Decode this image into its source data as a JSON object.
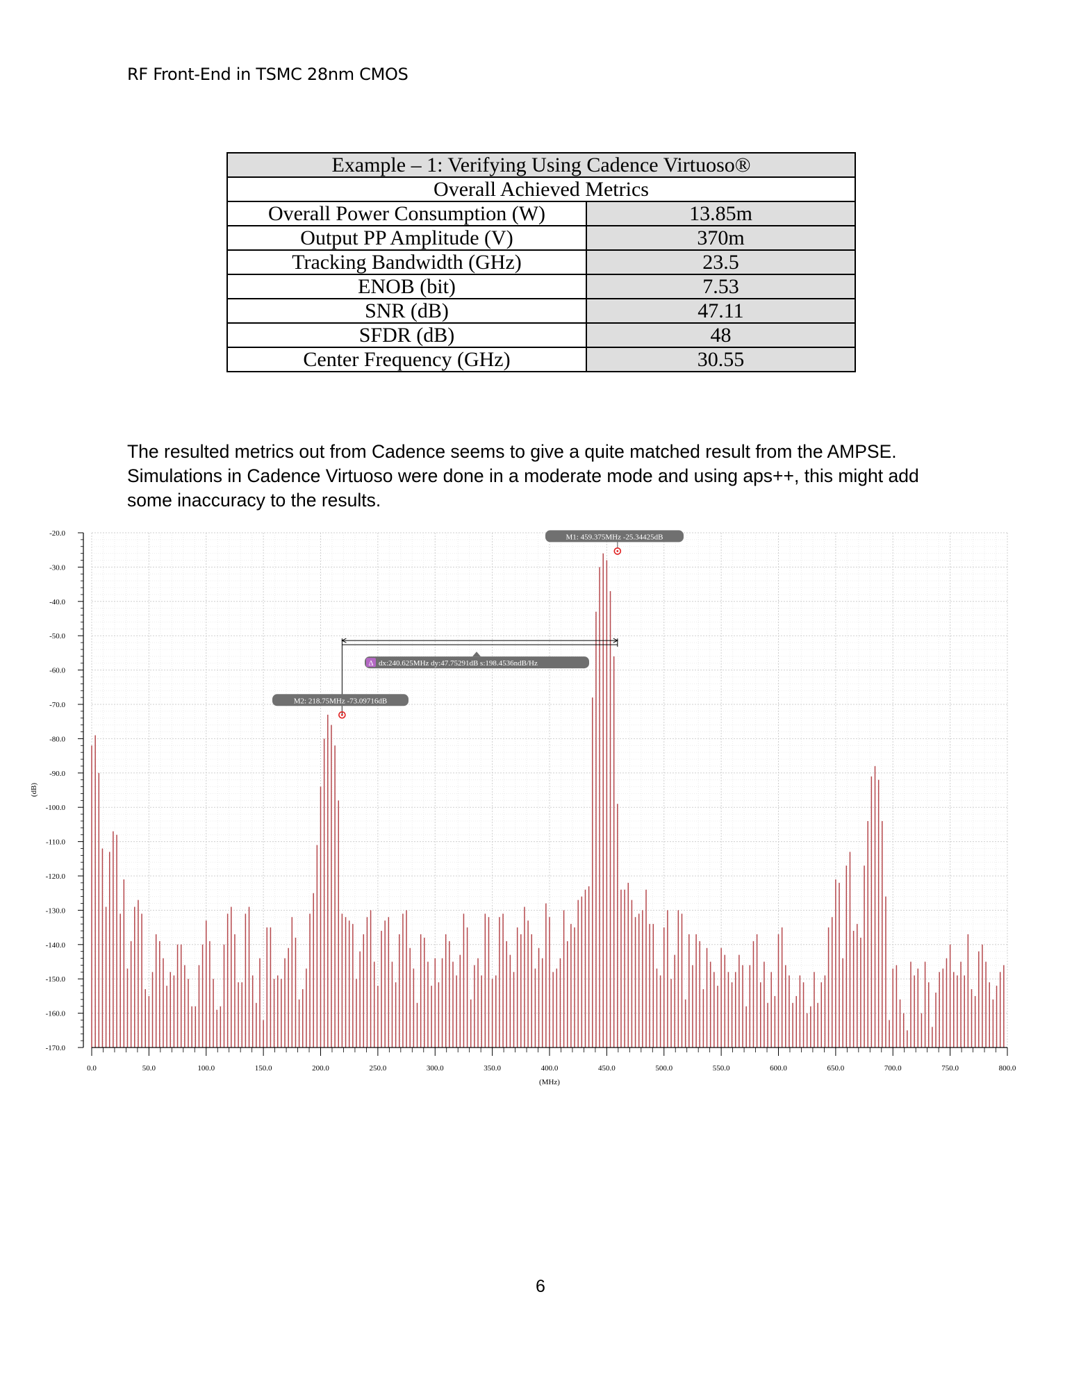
{
  "header": {
    "title": "RF Front-End in TSMC 28nm CMOS"
  },
  "table": {
    "title": "Example – 1: Verifying Using Cadence Virtuoso®",
    "subtitle": "Overall Achieved Metrics",
    "rows": [
      {
        "label": "Overall Power Consumption (W)",
        "value": "13.85m"
      },
      {
        "label": "Output PP Amplitude (V)",
        "value": "370m"
      },
      {
        "label": "Tracking Bandwidth (GHz)",
        "value": "23.5"
      },
      {
        "label": "ENOB (bit)",
        "value": "7.53"
      },
      {
        "label": "SNR (dB)",
        "value": "47.11"
      },
      {
        "label": "SFDR (dB)",
        "value": "48"
      },
      {
        "label": "Center Frequency (GHz)",
        "value": "30.55"
      }
    ]
  },
  "paragraph": {
    "lines": [
      "The resulted metrics out from Cadence seems to give a quite matched result from the AMPSE.",
      "Simulations in Cadence Virtuoso were done in a moderate mode and using aps++, this might add",
      "some inaccuracy to the results."
    ]
  },
  "page_number": "6",
  "chart_data": {
    "type": "bar",
    "xlabel": "(MHz)",
    "ylabel": "(dB)",
    "xlim": [
      0,
      800
    ],
    "ylim": [
      -170,
      -20
    ],
    "grid": true,
    "bar_color": "#b5474b",
    "x_ticks": [
      "0.0",
      "50.0",
      "100.0",
      "150.0",
      "200.0",
      "250.0",
      "300.0",
      "350.0",
      "400.0",
      "450.0",
      "500.0",
      "550.0",
      "600.0",
      "650.0",
      "700.0",
      "750.0",
      "800.0"
    ],
    "y_ticks": [
      "-20.0",
      "-30.0",
      "-40.0",
      "-50.0",
      "-60.0",
      "-70.0",
      "-80.0",
      "-90.0",
      "-100.0",
      "-110.0",
      "-120.0",
      "-130.0",
      "-140.0",
      "-150.0",
      "-160.0",
      "-170.0"
    ],
    "x_step": 3.125,
    "values": [
      -82,
      -79,
      -90,
      -112,
      -129,
      -113,
      -107,
      -108,
      -131,
      -121,
      -147,
      -139,
      -129,
      -127,
      -131,
      -153,
      -155,
      -148,
      -137,
      -139,
      -144,
      -152,
      -148,
      -149,
      -140,
      -140,
      -146,
      -150,
      -158,
      -158,
      -146,
      -140,
      -133,
      -139,
      -150,
      -159,
      -158,
      -140,
      -131,
      -129,
      -137,
      -151,
      -151,
      -131,
      -129,
      -149,
      -157,
      -144,
      -162,
      -135,
      -135,
      -150,
      -149,
      -150,
      -144,
      -141,
      -132,
      -138,
      -156,
      -153,
      -147,
      -131,
      -125,
      -111,
      -94,
      -80,
      -73,
      -76,
      -82,
      -98,
      -131,
      -132,
      -133,
      -134,
      -150,
      -142,
      -137,
      -132,
      -130,
      -145,
      -152,
      -136,
      -133,
      -132,
      -145,
      -151,
      -137,
      -131,
      -130,
      -141,
      -147,
      -157,
      -137,
      -138,
      -145,
      -152,
      -144,
      -151,
      -144,
      -137,
      -139,
      -145,
      -149,
      -143,
      -131,
      -135,
      -156,
      -146,
      -144,
      -149,
      -131,
      -132,
      -150,
      -149,
      -132,
      -131,
      -139,
      -143,
      -148,
      -135,
      -137,
      -129,
      -133,
      -137,
      -147,
      -141,
      -144,
      -128,
      -132,
      -148,
      -147,
      -144,
      -130,
      -139,
      -134,
      -135,
      -127,
      -126,
      -124,
      -123,
      -68,
      -43,
      -30,
      -26,
      -28,
      -37,
      -56,
      -99,
      -124,
      -124,
      -122,
      -127,
      -132,
      -131,
      -130,
      -124,
      -134,
      -134,
      -147,
      -149,
      -135,
      -130,
      -150,
      -143,
      -130,
      -131,
      -156,
      -137,
      -146,
      -137,
      -139,
      -153,
      -141,
      -145,
      -148,
      -152,
      -141,
      -143,
      -148,
      -151,
      -148,
      -143,
      -146,
      -158,
      -146,
      -139,
      -137,
      -151,
      -145,
      -157,
      -148,
      -155,
      -137,
      -135,
      -146,
      -149,
      -157,
      -155,
      -149,
      -151,
      -160,
      -158,
      -148,
      -157,
      -151,
      -149,
      -135,
      -132,
      -121,
      -122,
      -144,
      -117,
      -113,
      -136,
      -134,
      -138,
      -117,
      -104,
      -91,
      -88,
      -92,
      -104,
      -126,
      -162,
      -147,
      -146,
      -156,
      -160,
      -165,
      -145,
      -149,
      -147,
      -160,
      -145,
      -151,
      -164,
      -154,
      -148,
      -147,
      -144,
      -140,
      -148,
      -149,
      -145,
      -149,
      -137,
      -153,
      -155,
      -142,
      -140,
      -145,
      -151,
      -156,
      -152,
      -148,
      -146
    ],
    "markers": [
      {
        "label": "M1: 459.375MHz -25.34425dB",
        "x": 459.375,
        "y": -25.34425
      },
      {
        "label": "M2: 218.75MHz -73.09716dB",
        "x": 218.75,
        "y": -73.09716
      }
    ],
    "delta": {
      "icon": "Δ",
      "label": "dx:240.625MHz dy:47.75291dB s:198.4536ndB/Hz",
      "x1": 218.75,
      "x2": 459.375,
      "y": -52
    }
  }
}
